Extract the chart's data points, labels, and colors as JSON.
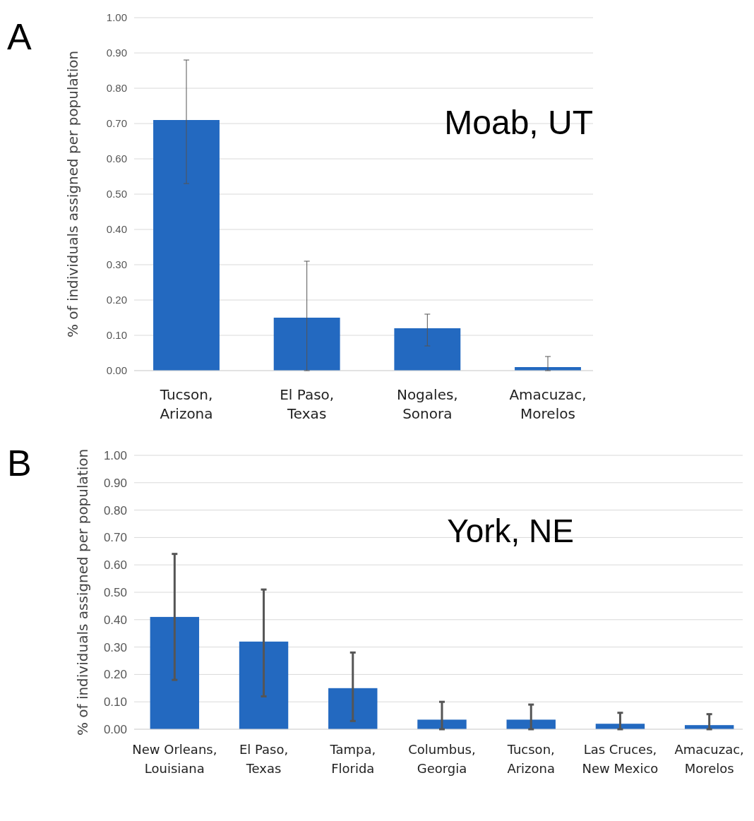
{
  "chart_data": [
    {
      "type": "bar",
      "title": "Moab, UT",
      "ylabel": "% of individuals assigned per population",
      "annotations": [
        "A"
      ],
      "categories": [
        "Tucson,\nArizona",
        "El Paso,\nTexas",
        "Nogales,\nSonora",
        "Amacuzac,\nMorelos"
      ],
      "values": [
        0.71,
        0.15,
        0.12,
        0.01
      ],
      "errors": [
        [
          0.53,
          0.88
        ],
        [
          0,
          0.31
        ],
        [
          0.07,
          0.16
        ],
        [
          0,
          0.04
        ]
      ],
      "color": "#2369c0",
      "ylim": [
        0,
        1
      ],
      "yticks": [
        {
          "value": 0,
          "label": "0.00"
        },
        {
          "value": 0.1,
          "label": "0.10"
        },
        {
          "value": 0.2,
          "label": "0.20"
        },
        {
          "value": 0.3,
          "label": "0.30"
        },
        {
          "value": 0.4,
          "label": "0.40"
        },
        {
          "value": 0.5,
          "label": "0.50"
        },
        {
          "value": 0.6,
          "label": "0.60"
        },
        {
          "value": 0.7,
          "label": "0.70"
        },
        {
          "value": 0.8,
          "label": "0.80"
        },
        {
          "value": 0.9,
          "label": "0.90"
        },
        {
          "value": 1,
          "label": "1.00"
        }
      ],
      "grid": "y"
    },
    {
      "type": "bar",
      "title": "York, NE",
      "ylabel": "% of individuals assigned per population",
      "annotations": [
        "B"
      ],
      "categories": [
        "New Orleans,\nLouisiana",
        "El Paso,\nTexas",
        "Tampa,\nFlorida",
        "Columbus,\nGeorgia",
        "Tucson,\nArizona",
        "Las Cruces,\nNew Mexico",
        "Amacuzac,\nMorelos"
      ],
      "values": [
        0.41,
        0.32,
        0.15,
        0.035,
        0.035,
        0.02,
        0.015
      ],
      "errors": [
        [
          0.18,
          0.64
        ],
        [
          0.12,
          0.51
        ],
        [
          0.03,
          0.28
        ],
        [
          0,
          0.1
        ],
        [
          0,
          0.09
        ],
        [
          0,
          0.06
        ],
        [
          0,
          0.055
        ]
      ],
      "color": "#2369c0",
      "ylim": [
        0,
        1
      ],
      "yticks": [
        {
          "value": 0,
          "label": "0.00"
        },
        {
          "value": 0.1,
          "label": "0.10"
        },
        {
          "value": 0.2,
          "label": "0.20"
        },
        {
          "value": 0.3,
          "label": "0.30"
        },
        {
          "value": 0.4,
          "label": "0.40"
        },
        {
          "value": 0.5,
          "label": "0.50"
        },
        {
          "value": 0.6,
          "label": "0.60"
        },
        {
          "value": 0.7,
          "label": "0.70"
        },
        {
          "value": 0.8,
          "label": "0.80"
        },
        {
          "value": 0.9,
          "label": "0.90"
        },
        {
          "value": 1,
          "label": "1.00"
        }
      ],
      "grid": "y"
    }
  ]
}
